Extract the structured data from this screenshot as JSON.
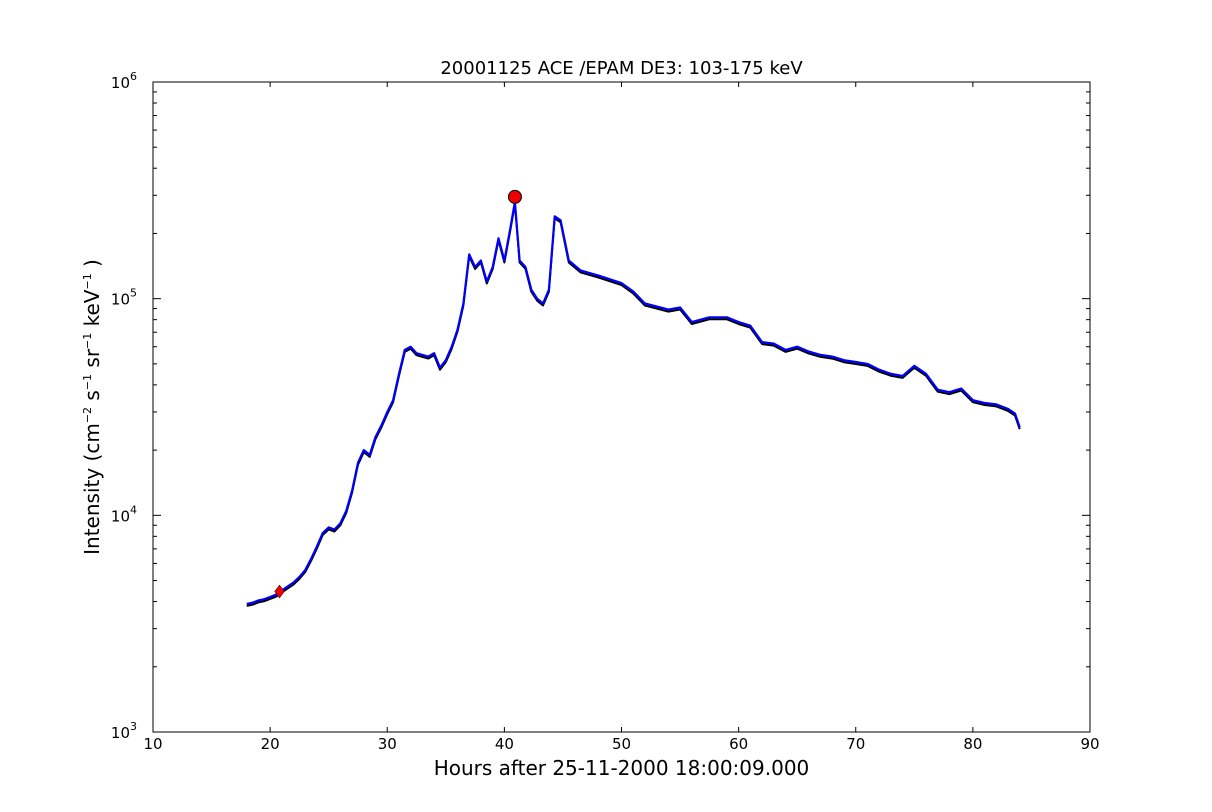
{
  "chart_data": {
    "type": "line",
    "title": "20001125 ACE /EPAM DE3: 103-175 keV",
    "xlabel": "Hours after 25-11-2000 18:00:09.000",
    "ylabel": {
      "base": "Intensity (cm",
      "exp1": "−2",
      "mid1": " s",
      "exp2": "−1",
      "mid2": " sr",
      "exp3": "−1",
      "mid3": " keV",
      "exp4": "−1",
      "end": " )"
    },
    "xlim": [
      10,
      90
    ],
    "ylim": [
      1000,
      1000000
    ],
    "yscale": "log",
    "grid": false,
    "x_ticks": [
      "10",
      "20",
      "30",
      "40",
      "50",
      "60",
      "70",
      "80",
      "90"
    ],
    "y_ticks": [
      {
        "base": "10",
        "exp": "3"
      },
      {
        "base": "10",
        "exp": "4"
      },
      {
        "base": "10",
        "exp": "5"
      },
      {
        "base": "10",
        "exp": "6"
      }
    ],
    "series": [
      {
        "color": "#0000ff",
        "points": [
          [
            18.0,
            3900
          ],
          [
            18.5,
            3950
          ],
          [
            19.0,
            4050
          ],
          [
            19.5,
            4100
          ],
          [
            20.0,
            4200
          ],
          [
            20.5,
            4300
          ],
          [
            21.0,
            4500
          ],
          [
            21.5,
            4700
          ],
          [
            22.0,
            4900
          ],
          [
            22.5,
            5200
          ],
          [
            23.0,
            5600
          ],
          [
            23.5,
            6300
          ],
          [
            24.0,
            7200
          ],
          [
            24.5,
            8300
          ],
          [
            25.0,
            8800
          ],
          [
            25.5,
            8600
          ],
          [
            26.0,
            9200
          ],
          [
            26.5,
            10500
          ],
          [
            27.0,
            13000
          ],
          [
            27.5,
            17500
          ],
          [
            28.0,
            20000
          ],
          [
            28.5,
            19000
          ],
          [
            29.0,
            23000
          ],
          [
            29.5,
            26000
          ],
          [
            30.0,
            30000
          ],
          [
            30.5,
            34000
          ],
          [
            31.0,
            45000
          ],
          [
            31.5,
            58000
          ],
          [
            32.0,
            60000
          ],
          [
            32.5,
            56000
          ],
          [
            33.0,
            55000
          ],
          [
            33.5,
            54000
          ],
          [
            34.0,
            56000
          ],
          [
            34.5,
            48000
          ],
          [
            35.0,
            52000
          ],
          [
            35.5,
            60000
          ],
          [
            36.0,
            72000
          ],
          [
            36.5,
            95000
          ],
          [
            37.0,
            160000
          ],
          [
            37.5,
            140000
          ],
          [
            38.0,
            150000
          ],
          [
            38.5,
            120000
          ],
          [
            39.0,
            140000
          ],
          [
            39.5,
            190000
          ],
          [
            40.0,
            150000
          ],
          [
            40.5,
            210000
          ],
          [
            40.9,
            280000
          ],
          [
            41.3,
            150000
          ],
          [
            41.8,
            140000
          ],
          [
            42.3,
            110000
          ],
          [
            42.8,
            100000
          ],
          [
            43.3,
            95000
          ],
          [
            43.8,
            110000
          ],
          [
            44.3,
            240000
          ],
          [
            44.8,
            230000
          ],
          [
            45.5,
            150000
          ],
          [
            46.5,
            135000
          ],
          [
            48.0,
            128000
          ],
          [
            50.0,
            118000
          ],
          [
            51.0,
            108000
          ],
          [
            52.0,
            95000
          ],
          [
            53.0,
            92000
          ],
          [
            54.0,
            89000
          ],
          [
            55.0,
            91000
          ],
          [
            56.0,
            78000
          ],
          [
            57.5,
            82000
          ],
          [
            59.0,
            82000
          ],
          [
            60.0,
            78000
          ],
          [
            61.0,
            75000
          ],
          [
            62.0,
            63000
          ],
          [
            63.0,
            62000
          ],
          [
            64.0,
            58000
          ],
          [
            65.0,
            60000
          ],
          [
            66.0,
            57000
          ],
          [
            67.0,
            55000
          ],
          [
            68.0,
            54000
          ],
          [
            69.0,
            52000
          ],
          [
            70.0,
            51000
          ],
          [
            71.0,
            50000
          ],
          [
            72.0,
            47000
          ],
          [
            73.0,
            45000
          ],
          [
            74.0,
            44000
          ],
          [
            75.0,
            49000
          ],
          [
            76.0,
            45000
          ],
          [
            77.0,
            38000
          ],
          [
            78.0,
            37000
          ],
          [
            79.0,
            38500
          ],
          [
            80.0,
            34000
          ],
          [
            81.0,
            33000
          ],
          [
            82.0,
            32500
          ],
          [
            83.0,
            31000
          ],
          [
            83.6,
            29500
          ],
          [
            84.0,
            25500
          ]
        ]
      }
    ],
    "markers": [
      {
        "shape": "diamond",
        "color": "#ee0000",
        "x": 20.8,
        "y": 4450
      },
      {
        "shape": "circle",
        "color": "#ee0000",
        "x": 40.9,
        "y": 295000
      }
    ]
  }
}
